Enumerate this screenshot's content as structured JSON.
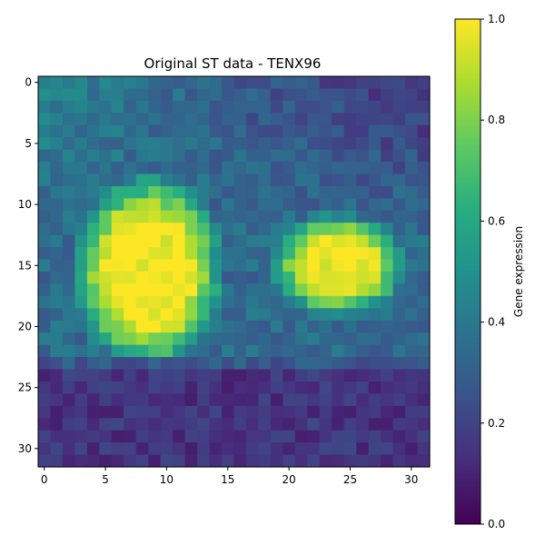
{
  "chart_data": {
    "type": "heatmap",
    "title": "Original ST data - TENX96",
    "xlabel": "",
    "ylabel": "",
    "grid_size": 32,
    "x_ticks": [
      0,
      5,
      10,
      15,
      20,
      25,
      30
    ],
    "y_ticks": [
      0,
      5,
      10,
      15,
      20,
      25,
      30
    ],
    "colormap": "viridis",
    "colorbar": {
      "label": "Gene expression",
      "range": [
        0,
        1
      ],
      "ticks": [
        "0.0",
        "0.2",
        "0.4",
        "0.6",
        "0.8",
        "1.0"
      ],
      "tick_values": [
        0,
        0.2,
        0.4,
        0.6,
        0.8,
        1.0
      ]
    },
    "clusters": [
      {
        "center_col": 8.5,
        "center_row": 15.5,
        "radius_col": 5.0,
        "radius_row": 6.5,
        "peak": 1.0
      },
      {
        "center_col": 24.0,
        "center_row": 15.0,
        "radius_col": 4.5,
        "radius_row": 3.5,
        "peak": 0.95
      }
    ],
    "background_level": 0.35,
    "bottom_rows_level": 0.08,
    "top_left_level": 0.45,
    "top_right_level": 0.12
  }
}
